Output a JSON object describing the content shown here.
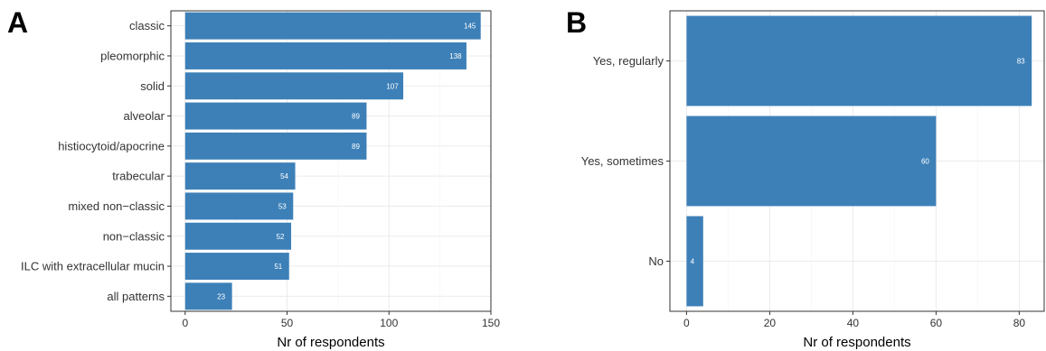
{
  "chart_data": [
    {
      "type": "bar",
      "orientation": "horizontal",
      "panel_label": "A",
      "categories": [
        "classic",
        "pleomorphic",
        "solid",
        "alveolar",
        "histiocytoid/apocrine",
        "trabecular",
        "mixed non−classic",
        "non−classic",
        "ILC with extracellular mucin",
        "all patterns"
      ],
      "values": [
        145,
        138,
        107,
        89,
        89,
        54,
        53,
        52,
        51,
        23
      ],
      "xlabel": "Nr of respondents",
      "ylabel": "",
      "xlim": [
        -7,
        150
      ],
      "xticks": [
        0,
        50,
        100,
        150
      ],
      "grid": true,
      "bar_color": "#3d80b8"
    },
    {
      "type": "bar",
      "orientation": "horizontal",
      "panel_label": "B",
      "categories": [
        "Yes, regularly",
        "Yes, sometimes",
        "No"
      ],
      "values": [
        83,
        60,
        4
      ],
      "xlabel": "Nr of respondents",
      "ylabel": "",
      "xlim": [
        -4,
        86
      ],
      "xticks": [
        0,
        20,
        40,
        60,
        80
      ],
      "grid": true,
      "bar_color": "#3d80b8"
    }
  ]
}
